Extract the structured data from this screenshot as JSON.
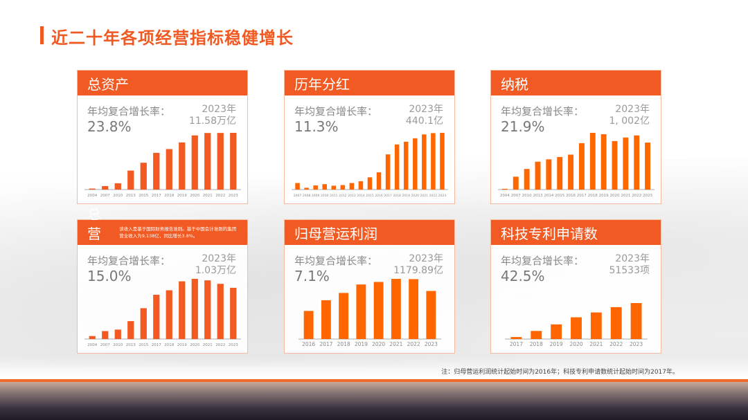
{
  "page": {
    "title": "近二十年各项经营指标稳健增长",
    "footnote": "注：归母营运利润统计起始时间为2016年；科技专利申请数统计起始时间为2017年。"
  },
  "colors": {
    "accent": "#f15a22",
    "bar": "#f25a22",
    "bar2": "#ff6600"
  },
  "cards": [
    {
      "title": "总资产",
      "cagr_label": "年均复合增长率：",
      "cagr": "23.8%",
      "year": "2023年",
      "value": "11.58万亿"
    },
    {
      "title": "历年分红",
      "cagr_label": "年均复合增长率：",
      "cagr": "11.3%",
      "year": "2023年",
      "value": "440.1亿"
    },
    {
      "title": "纳税",
      "cagr_label": "年均复合增长率：",
      "cagr": "21.9%",
      "year": "2023年",
      "value": "1, 002亿"
    },
    {
      "title": "总营收",
      "note": "该收入是基于国际财务报告准则。基于中国会计准则的集团营业收入为9,138亿，同比增长3.8%。",
      "cagr_label": "年均复合增长率：",
      "cagr": "15.0%",
      "year": "2023年",
      "value": "1.03万亿"
    },
    {
      "title": "归母营运利润",
      "cagr_label": "年均复合增长率：",
      "cagr": "7.1%",
      "year": "2023年",
      "value": "1179.89亿"
    },
    {
      "title": "科技专利申请数",
      "cagr_label": "年均复合增长率：",
      "cagr": "42.5%",
      "year": "2023年",
      "value": "51533项"
    }
  ],
  "chart_data": [
    {
      "type": "bar",
      "title": "总资产",
      "unit": "万亿",
      "categories": [
        "2004",
        "2007",
        "2010",
        "2013",
        "2015",
        "2017",
        "2018",
        "2019",
        "2020",
        "2021",
        "2022",
        "2023"
      ],
      "values": [
        0.21,
        0.72,
        1.29,
        3.88,
        5.48,
        7.5,
        8.27,
        9.62,
        11.06,
        11.55,
        11.56,
        11.58
      ]
    },
    {
      "type": "bar",
      "title": "历年分红",
      "unit": "亿",
      "categories": [
        "2007",
        "2008",
        "2009",
        "2010",
        "2011",
        "2012",
        "2013",
        "2014",
        "2015",
        "2016",
        "2017",
        "2018",
        "2019",
        "2020",
        "2021",
        "2022",
        "2023"
      ],
      "values": [
        51,
        14,
        32,
        42,
        30,
        35,
        51,
        65,
        95,
        134,
        273,
        350,
        371,
        398,
        428,
        438,
        440.1
      ]
    },
    {
      "type": "bar",
      "title": "纳税",
      "unit": "亿",
      "categories": [
        "2004",
        "2007",
        "2010",
        "2013",
        "2014",
        "2015",
        "2016",
        "2017",
        "2018",
        "2019",
        "2020",
        "2021",
        "2022",
        "2023"
      ],
      "values": [
        17,
        275,
        440,
        595,
        645,
        695,
        745,
        990,
        1210,
        1180,
        1035,
        1110,
        1155,
        1002
      ]
    },
    {
      "type": "bar",
      "title": "总营收",
      "unit": "万亿",
      "categories": [
        "2004",
        "2007",
        "2010",
        "2013",
        "2015",
        "2017",
        "2018",
        "2019",
        "2020",
        "2021",
        "2022",
        "2023"
      ],
      "values": [
        0.06,
        0.16,
        0.19,
        0.36,
        0.62,
        0.89,
        0.98,
        1.16,
        1.21,
        1.18,
        1.11,
        1.03
      ]
    },
    {
      "type": "bar",
      "title": "归母营运利润",
      "unit": "亿",
      "categories": [
        "2016",
        "2017",
        "2018",
        "2019",
        "2020",
        "2021",
        "2022",
        "2023"
      ],
      "values": [
        690,
        952,
        1131,
        1339,
        1401,
        1477,
        1470,
        1179.89
      ]
    },
    {
      "type": "bar",
      "title": "科技专利申请数",
      "unit": "项",
      "categories": [
        "2017",
        "2018",
        "2019",
        "2020",
        "2021",
        "2022",
        "2023"
      ],
      "values": [
        2900,
        11600,
        21000,
        31200,
        38100,
        45700,
        51533
      ]
    }
  ]
}
